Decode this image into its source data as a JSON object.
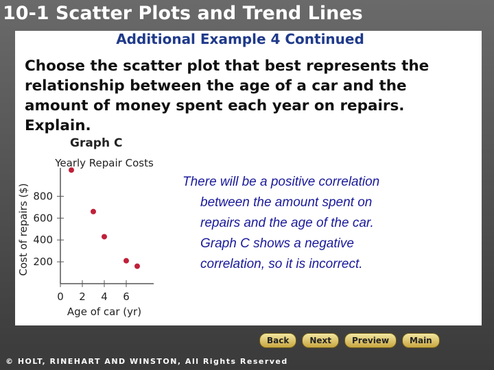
{
  "header": {
    "title": "10-1 Scatter Plots and Trend Lines",
    "subtitle": "Additional Example 4 Continued"
  },
  "question": [
    "Choose the scatter plot that best represents the",
    "relationship between the age of a car and the",
    "amount of money spent each year on repairs.",
    "Explain."
  ],
  "graph_label": "Graph C",
  "chart_data": {
    "type": "scatter",
    "title": "Yearly Repair Costs",
    "x_label": "Age of car (yr)",
    "y_label": "Cost of repairs ($)",
    "x": [
      1,
      3,
      4,
      6,
      7
    ],
    "values": [
      1040,
      660,
      430,
      210,
      160
    ],
    "color": "#c0203a",
    "xlim": [
      0,
      8.5
    ],
    "ylim": [
      0,
      1060
    ],
    "xticks": [
      0,
      2,
      4,
      6
    ],
    "yticks": [
      200,
      400,
      600,
      800
    ]
  },
  "answer": [
    "There will be a positive correlation",
    "between the amount spent on",
    "repairs and the age of the car.",
    "Graph C shows a negative",
    "correlation, so it is incorrect."
  ],
  "nav": [
    "Back",
    "Next",
    "Preview",
    "Main"
  ],
  "footer": "© HOLT, RINEHART AND WINSTON, All Rights Reserved"
}
